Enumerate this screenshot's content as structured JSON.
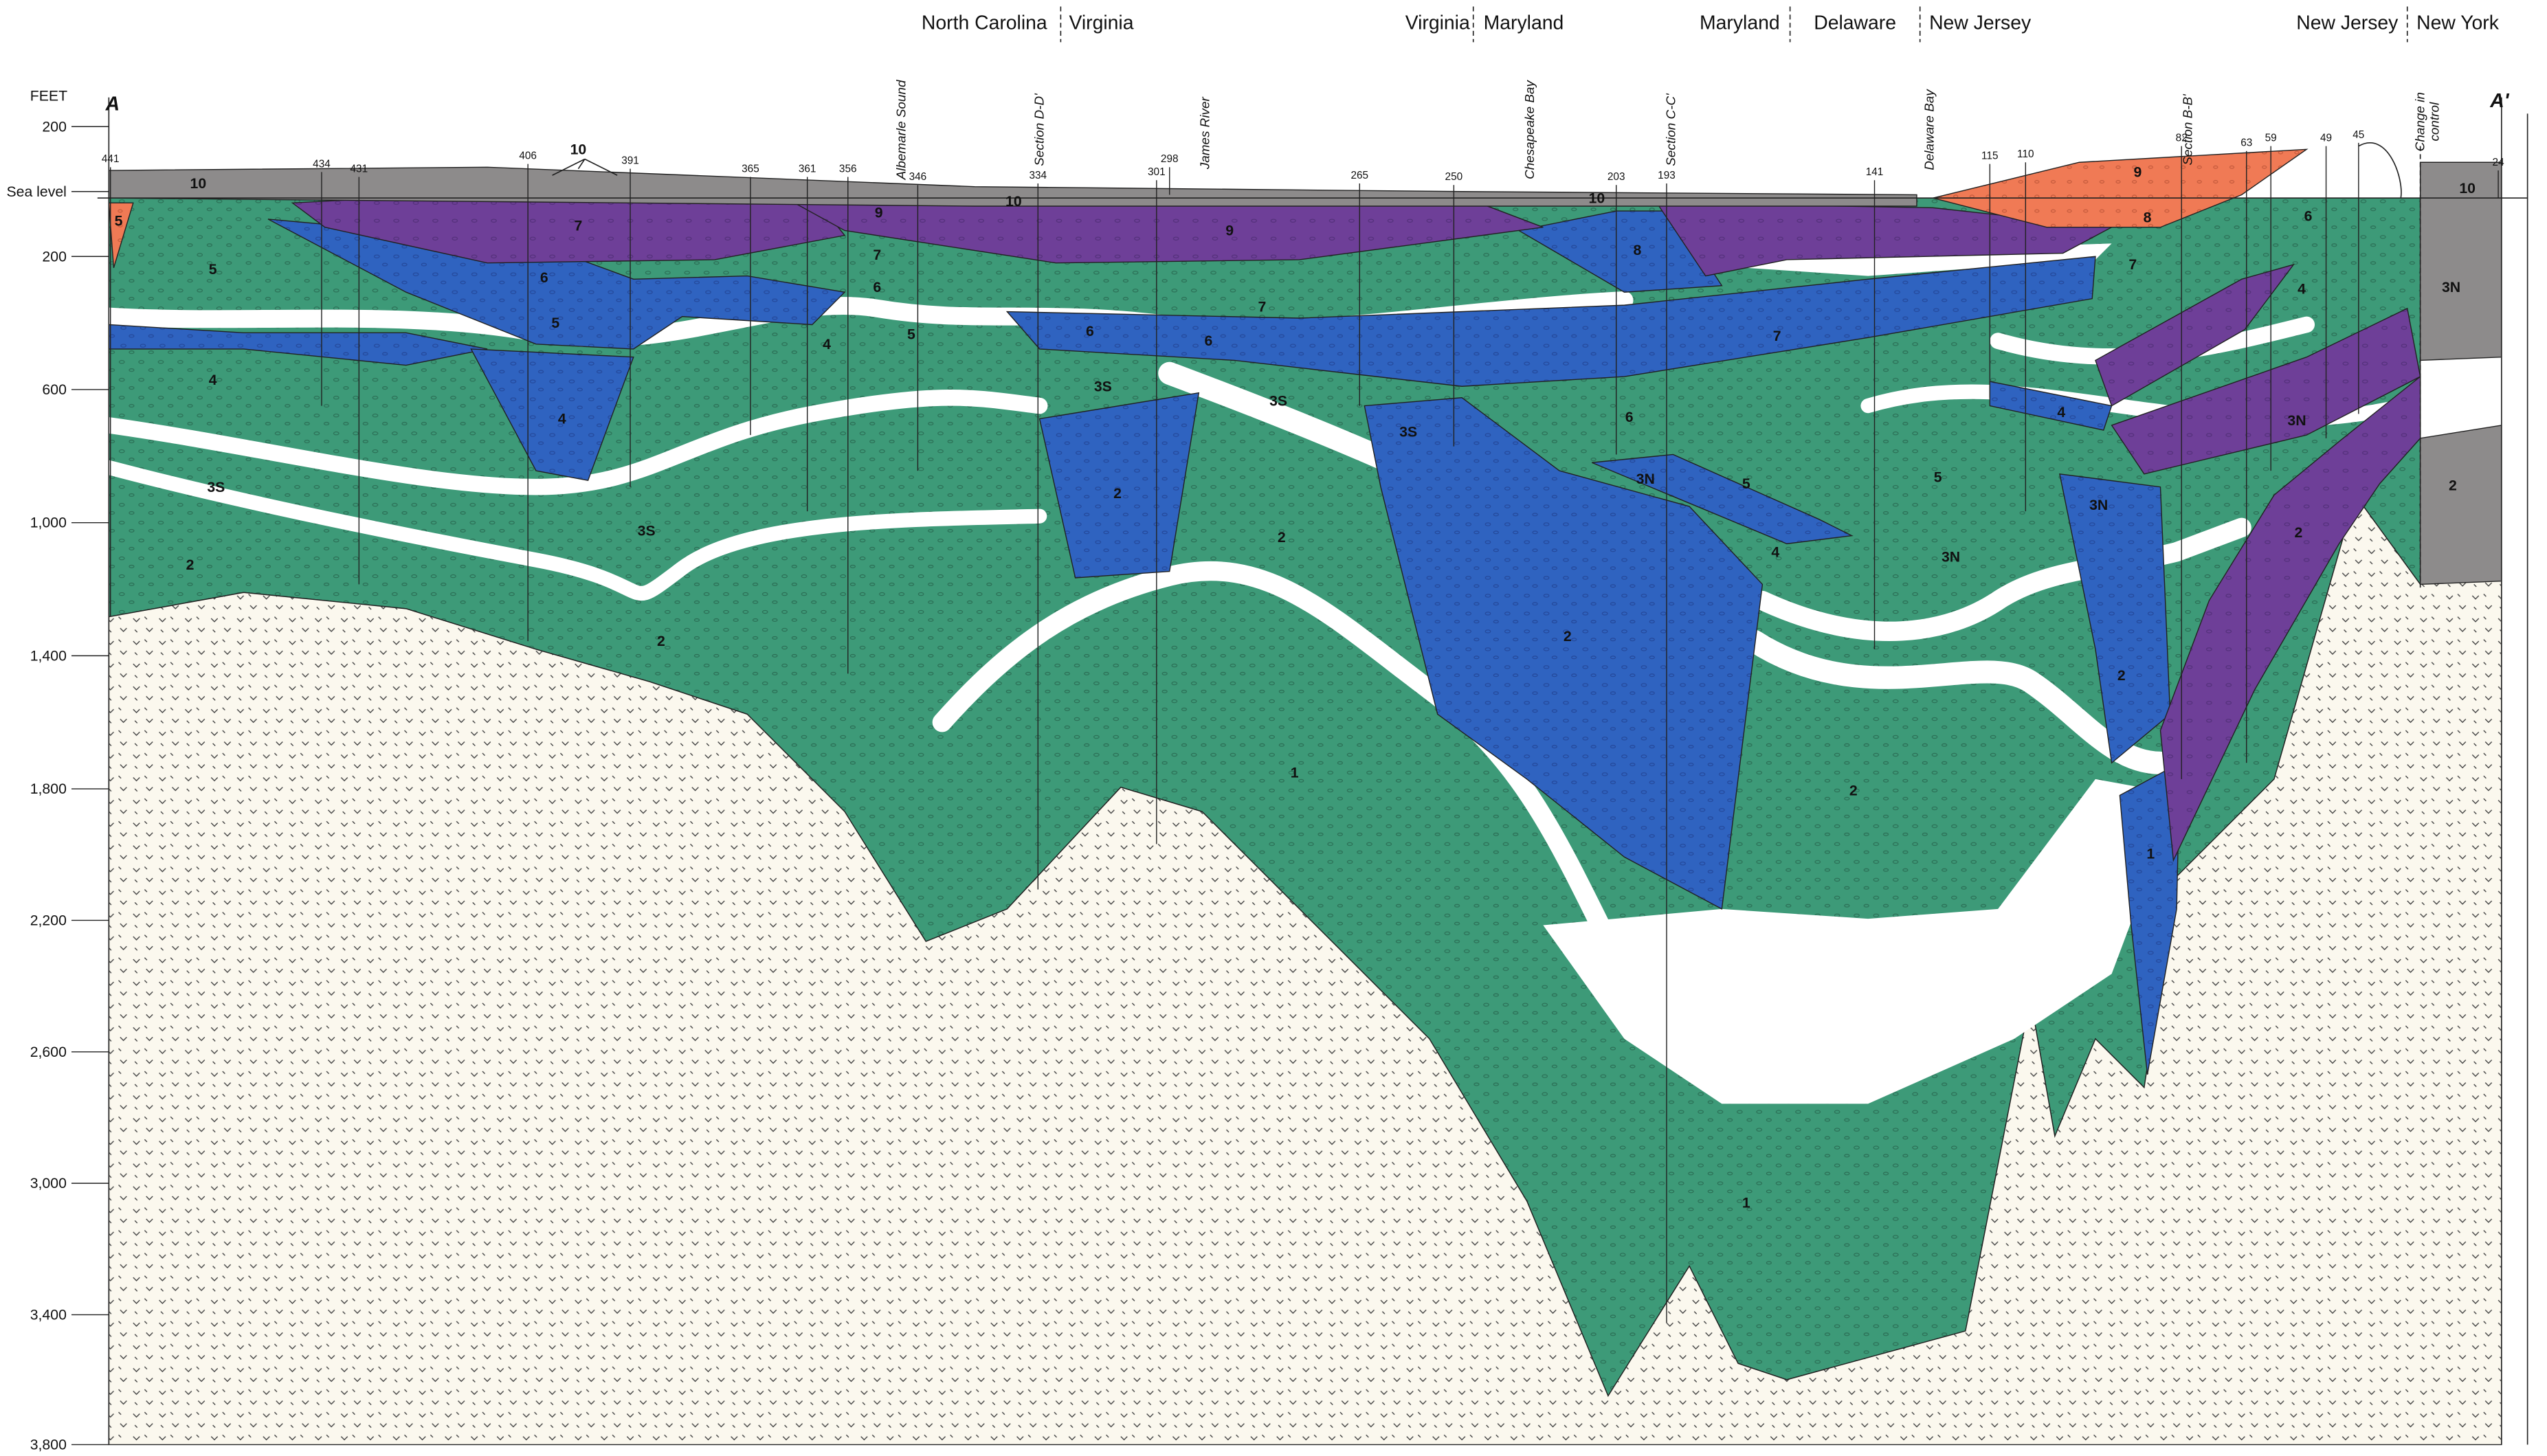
{
  "section": {
    "start": "A",
    "end": "A'"
  },
  "states": [
    "North Carolina",
    "Virginia",
    "Virginia",
    "Maryland",
    "Maryland",
    "Delaware",
    "New Jersey",
    "New Jersey",
    "New York"
  ],
  "depth_axis": {
    "title": "FEET",
    "labels": [
      "200",
      "Sea level",
      "200",
      "600",
      "1,000",
      "1,400",
      "1,800",
      "2,200",
      "2,600",
      "3,000",
      "3,400",
      "3,800"
    ]
  },
  "features": [
    "Albemarle Sound",
    "Section D-D'",
    "James River",
    "Chesapeake Bay",
    "Section C-C'",
    "Delaware Bay",
    "Section B-B'"
  ],
  "control_note": [
    "Change in",
    "control"
  ],
  "wells": [
    "441",
    "434",
    "431",
    "406",
    "391",
    "365",
    "361",
    "356",
    "346",
    "334",
    "301",
    "298",
    "265",
    "250",
    "203",
    "193",
    "141",
    "115",
    "110",
    "82",
    "63",
    "59",
    "49",
    "45",
    "24"
  ],
  "units": [
    "10",
    "10",
    "10",
    "10",
    "10",
    "9",
    "9",
    "9",
    "8",
    "8",
    "7",
    "7",
    "7",
    "7",
    "7",
    "6",
    "6",
    "6",
    "6",
    "6",
    "6",
    "5",
    "5",
    "5",
    "5",
    "5",
    "5",
    "4",
    "4",
    "4",
    "4",
    "4",
    "4",
    "3S",
    "3S",
    "3S",
    "3S",
    "3S",
    "3N",
    "3N",
    "3N",
    "3N",
    "3N",
    "2",
    "2",
    "2",
    "2",
    "2",
    "2",
    "2",
    "2",
    "2",
    "1",
    "1",
    "1"
  ]
}
